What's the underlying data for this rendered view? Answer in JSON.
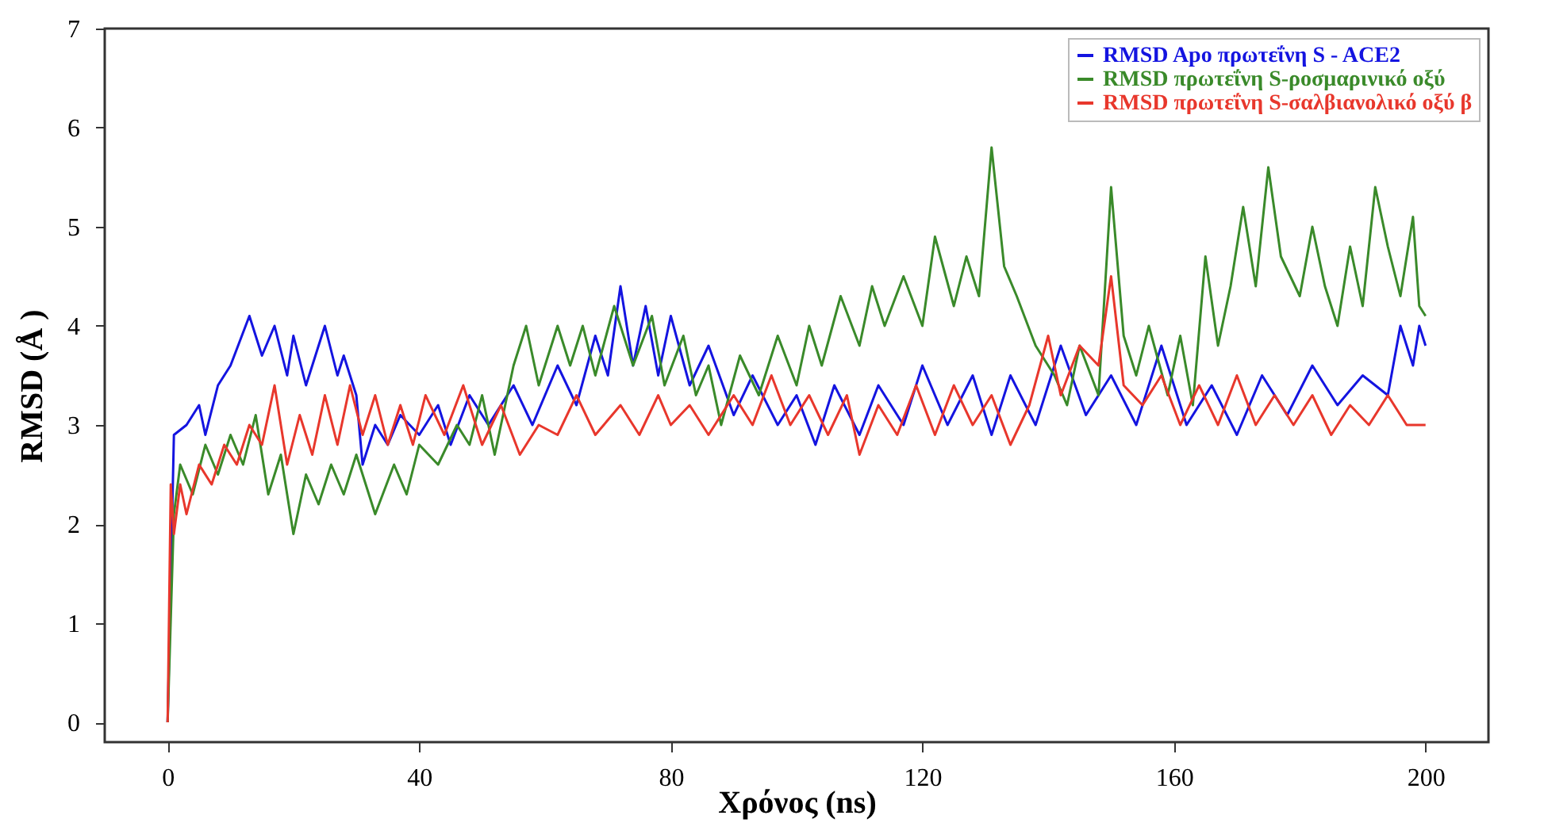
{
  "chart_data": {
    "type": "line",
    "xlabel": "Χρόνος (ns)",
    "ylabel": "RMSD (Å )",
    "xlim": [
      -10,
      210
    ],
    "ylim": [
      -0.2,
      7
    ],
    "xticks": [
      0,
      40,
      80,
      120,
      160,
      200
    ],
    "yticks": [
      0,
      1,
      2,
      3,
      4,
      5,
      6,
      7
    ],
    "grid": false,
    "legend": "top right",
    "marker": "none",
    "line_style": "solid",
    "series": [
      {
        "name": "RMSD Apo πρωτεΐνη S - ACE2",
        "color": "#1414e0",
        "x": [
          0,
          1,
          3,
          5,
          6,
          8,
          10,
          13,
          15,
          17,
          19,
          20,
          22,
          25,
          27,
          28,
          30,
          31,
          33,
          35,
          37,
          40,
          43,
          45,
          48,
          51,
          55,
          58,
          62,
          65,
          68,
          70,
          72,
          74,
          76,
          78,
          80,
          83,
          86,
          90,
          93,
          97,
          100,
          103,
          106,
          110,
          113,
          117,
          120,
          124,
          128,
          131,
          134,
          138,
          142,
          146,
          150,
          154,
          158,
          162,
          166,
          170,
          174,
          178,
          182,
          186,
          190,
          194,
          196,
          198,
          199,
          200
        ],
        "values": [
          0,
          2.9,
          3.0,
          3.2,
          2.9,
          3.4,
          3.6,
          4.1,
          3.7,
          4.0,
          3.5,
          3.9,
          3.4,
          4.0,
          3.5,
          3.7,
          3.3,
          2.6,
          3.0,
          2.8,
          3.1,
          2.9,
          3.2,
          2.8,
          3.3,
          3.0,
          3.4,
          3.0,
          3.6,
          3.2,
          3.9,
          3.5,
          4.4,
          3.6,
          4.2,
          3.5,
          4.1,
          3.4,
          3.8,
          3.1,
          3.5,
          3.0,
          3.3,
          2.8,
          3.4,
          2.9,
          3.4,
          3.0,
          3.6,
          3.0,
          3.5,
          2.9,
          3.5,
          3.0,
          3.8,
          3.1,
          3.5,
          3.0,
          3.8,
          3.0,
          3.4,
          2.9,
          3.5,
          3.1,
          3.6,
          3.2,
          3.5,
          3.3,
          4.0,
          3.6,
          4.0,
          3.8
        ]
      },
      {
        "name": "RMSD πρωτεΐνη S-ρoσμαρινικό oξύ",
        "color": "#3a8a2a",
        "x": [
          0,
          1,
          2,
          4,
          6,
          8,
          10,
          12,
          14,
          16,
          18,
          20,
          22,
          24,
          26,
          28,
          30,
          33,
          36,
          38,
          40,
          43,
          46,
          48,
          50,
          52,
          55,
          57,
          59,
          62,
          64,
          66,
          68,
          71,
          74,
          77,
          79,
          82,
          84,
          86,
          88,
          91,
          94,
          97,
          100,
          102,
          104,
          107,
          110,
          112,
          114,
          117,
          120,
          122,
          125,
          127,
          129,
          131,
          133,
          135,
          138,
          141,
          143,
          145,
          148,
          150,
          152,
          154,
          156,
          159,
          161,
          163,
          165,
          167,
          169,
          171,
          173,
          175,
          177,
          180,
          182,
          184,
          186,
          188,
          190,
          192,
          194,
          196,
          198,
          199,
          200
        ],
        "values": [
          0,
          2.1,
          2.6,
          2.3,
          2.8,
          2.5,
          2.9,
          2.6,
          3.1,
          2.3,
          2.7,
          1.9,
          2.5,
          2.2,
          2.6,
          2.3,
          2.7,
          2.1,
          2.6,
          2.3,
          2.8,
          2.6,
          3.0,
          2.8,
          3.3,
          2.7,
          3.6,
          4.0,
          3.4,
          4.0,
          3.6,
          4.0,
          3.5,
          4.2,
          3.6,
          4.1,
          3.4,
          3.9,
          3.3,
          3.6,
          3.0,
          3.7,
          3.3,
          3.9,
          3.4,
          4.0,
          3.6,
          4.3,
          3.8,
          4.4,
          4.0,
          4.5,
          4.0,
          4.9,
          4.2,
          4.7,
          4.3,
          5.8,
          4.6,
          4.3,
          3.8,
          3.5,
          3.2,
          3.8,
          3.3,
          5.4,
          3.9,
          3.5,
          4.0,
          3.3,
          3.9,
          3.2,
          4.7,
          3.8,
          4.4,
          5.2,
          4.4,
          5.6,
          4.7,
          4.3,
          5.0,
          4.4,
          4.0,
          4.8,
          4.2,
          5.4,
          4.8,
          4.3,
          5.1,
          4.2,
          4.1
        ]
      },
      {
        "name": "RMSD πρωτεΐνη S-σαλβιανολικό oξύ β",
        "color": "#e8372c",
        "x": [
          0,
          0.5,
          1,
          2,
          3,
          5,
          7,
          9,
          11,
          13,
          15,
          17,
          19,
          21,
          23,
          25,
          27,
          29,
          31,
          33,
          35,
          37,
          39,
          41,
          44,
          47,
          50,
          53,
          56,
          59,
          62,
          65,
          68,
          72,
          75,
          78,
          80,
          83,
          86,
          90,
          93,
          96,
          99,
          102,
          105,
          108,
          110,
          113,
          116,
          119,
          122,
          125,
          128,
          131,
          134,
          137,
          140,
          142,
          145,
          148,
          150,
          152,
          155,
          158,
          161,
          164,
          167,
          170,
          173,
          176,
          179,
          182,
          185,
          188,
          191,
          194,
          197,
          200
        ],
        "values": [
          0,
          2.4,
          1.9,
          2.4,
          2.1,
          2.6,
          2.4,
          2.8,
          2.6,
          3.0,
          2.8,
          3.4,
          2.6,
          3.1,
          2.7,
          3.3,
          2.8,
          3.4,
          2.9,
          3.3,
          2.8,
          3.2,
          2.8,
          3.3,
          2.9,
          3.4,
          2.8,
          3.2,
          2.7,
          3.0,
          2.9,
          3.3,
          2.9,
          3.2,
          2.9,
          3.3,
          3.0,
          3.2,
          2.9,
          3.3,
          3.0,
          3.5,
          3.0,
          3.3,
          2.9,
          3.3,
          2.7,
          3.2,
          2.9,
          3.4,
          2.9,
          3.4,
          3.0,
          3.3,
          2.8,
          3.2,
          3.9,
          3.3,
          3.8,
          3.6,
          4.5,
          3.4,
          3.2,
          3.5,
          3.0,
          3.4,
          3.0,
          3.5,
          3.0,
          3.3,
          3.0,
          3.3,
          2.9,
          3.2,
          3.0,
          3.3,
          3.0,
          3.0
        ]
      }
    ]
  }
}
